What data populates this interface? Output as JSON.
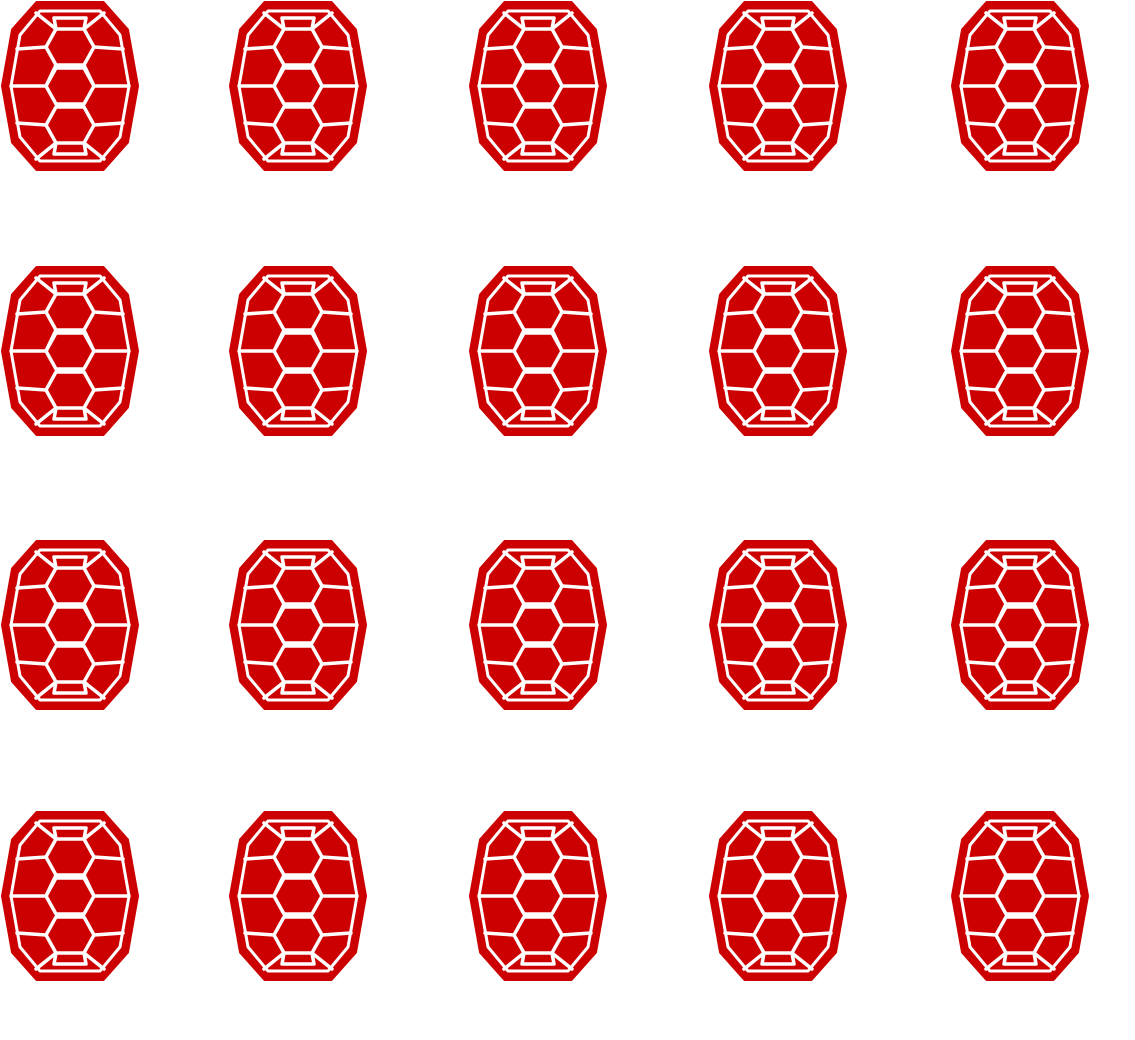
{
  "icon": "turtle-shell-icon",
  "colors": {
    "shell_fill": "#cc0000",
    "pattern_lines": "#ffffff",
    "background": "#ffffff"
  },
  "grid": {
    "rows": 4,
    "columns": 5,
    "count": 20
  }
}
